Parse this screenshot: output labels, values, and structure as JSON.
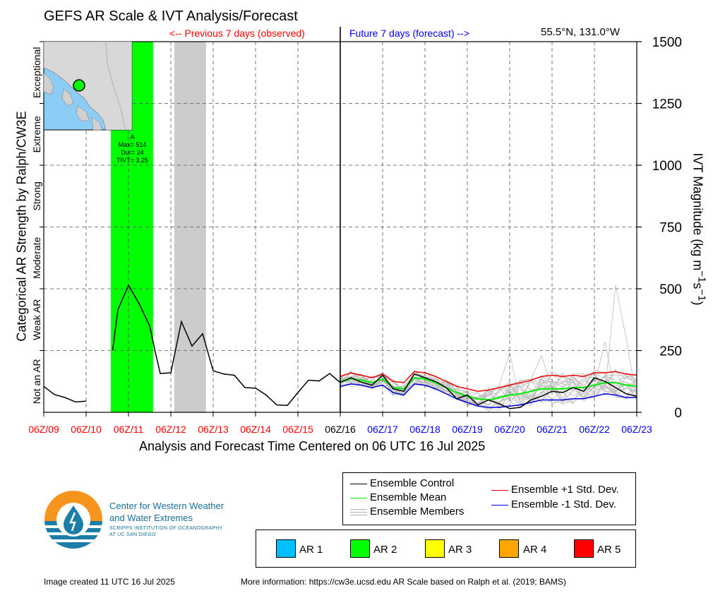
{
  "header": {
    "title": "GEFS AR Scale & IVT Analysis/Forecast",
    "previous_label": "<-- Previous 7 days (observed)",
    "future_label": "Future 7 days (forecast) -->",
    "location": "55.5°N, 131.0°W"
  },
  "footer": {
    "created": "Image created 11 UTC 16 Jul 2025",
    "more_info": "More information: https://cw3e.ucsd.edu AR Scale based on Ralph et al. (2019; BAMS)"
  },
  "logo": {
    "line1": "Center for Western Weather",
    "line2": "and Water Extremes",
    "sub1": "SCRIPPS INSTITUTION OF OCEANOGRAPHY",
    "sub2": "AT UC SAN DIEGO",
    "icon": "water-drop-logo-icon"
  },
  "inset": {
    "event_letter": "A",
    "max_text": "Max= 514",
    "dur_text": "Dur= 24",
    "tivt_text": "TIVT= 3.25"
  },
  "legend": {
    "items": [
      {
        "label": "Ensemble Control",
        "color": "#000000"
      },
      {
        "label": "Ensemble Mean",
        "color": "#00ee00"
      },
      {
        "label": "Ensemble Members",
        "color": "#b0b0b0"
      },
      {
        "label": "Ensemble +1 Std. Dev.",
        "color": "#ee0000"
      },
      {
        "label": "Ensemble -1 Std. Dev.",
        "color": "#0000dd"
      }
    ],
    "ar_scale": [
      {
        "label": "AR 1",
        "color": "#00bfff"
      },
      {
        "label": "AR 2",
        "color": "#00ff00"
      },
      {
        "label": "AR 3",
        "color": "#ffff00"
      },
      {
        "label": "AR 4",
        "color": "#ffa500"
      },
      {
        "label": "AR 5",
        "color": "#ff0000"
      }
    ]
  },
  "chart_data": {
    "type": "line",
    "title": "GEFS AR Scale & IVT Analysis/Forecast",
    "xlabel": "Analysis and Forecast Time Centered on 06 UTC 16 Jul 2025",
    "ylabel_left": "Categorical AR Strength by Ralph/CW3E",
    "ylabel_right": "IVT Magnitude (kg m^-1 s^-1)",
    "xlim": [
      0,
      14
    ],
    "ylim": [
      0,
      1500
    ],
    "x_ticks": [
      {
        "label": "06Z/09",
        "color": "#ff0000"
      },
      {
        "label": "06Z/10",
        "color": "#ff0000"
      },
      {
        "label": "06Z/11",
        "color": "#ff0000"
      },
      {
        "label": "06Z/12",
        "color": "#ff0000"
      },
      {
        "label": "06Z/13",
        "color": "#ff0000"
      },
      {
        "label": "06Z/14",
        "color": "#ff0000"
      },
      {
        "label": "06Z/15",
        "color": "#ff0000"
      },
      {
        "label": "06Z/16",
        "color": "#000000"
      },
      {
        "label": "06Z/17",
        "color": "#0000ff"
      },
      {
        "label": "06Z/18",
        "color": "#0000ff"
      },
      {
        "label": "06Z/19",
        "color": "#0000ff"
      },
      {
        "label": "06Z/20",
        "color": "#0000ff"
      },
      {
        "label": "06Z/21",
        "color": "#0000ff"
      },
      {
        "label": "06Z/22",
        "color": "#0000ff"
      },
      {
        "label": "06Z/23",
        "color": "#0000ff"
      }
    ],
    "y_ticks": [
      0,
      250,
      500,
      750,
      1000,
      1250,
      1500
    ],
    "categories_left": [
      {
        "label": "Not an AR",
        "from": 0,
        "to": 250
      },
      {
        "label": "Weak AR",
        "from": 250,
        "to": 500
      },
      {
        "label": "Moderate",
        "from": 500,
        "to": 750
      },
      {
        "label": "Strong",
        "from": 750,
        "to": 1000
      },
      {
        "label": "Extreme",
        "from": 1000,
        "to": 1250
      },
      {
        "label": "Exceptional",
        "from": 1250,
        "to": 1500
      }
    ],
    "shaded_periods": [
      {
        "x0": 1.58,
        "x1": 2.58,
        "color": "#00ff00",
        "kind": "AR 2"
      },
      {
        "x0": 3.08,
        "x1": 3.83,
        "color": "#cccccc",
        "kind": "below AR"
      }
    ],
    "observed": {
      "name": "Ensemble Control",
      "segments": [
        {
          "x": [
            0,
            0.25,
            0.5,
            0.75,
            1.0
          ],
          "y": [
            105,
            72,
            60,
            42,
            45
          ]
        },
        {
          "x": [
            1.625,
            1.75,
            2.0,
            2.25,
            2.5,
            2.625,
            2.75,
            3.0,
            3.25,
            3.5,
            3.75,
            4.0,
            4.25,
            4.5,
            4.75,
            5.0,
            5.25,
            5.5,
            5.75,
            6.0,
            6.25,
            6.5,
            6.75,
            7.0
          ],
          "y": [
            250,
            415,
            514,
            440,
            350,
            250,
            157,
            160,
            367,
            268,
            318,
            168,
            155,
            150,
            100,
            98,
            70,
            30,
            28,
            80,
            130,
            127,
            157,
            120
          ]
        }
      ]
    },
    "forecast_x": [
      7.0,
      7.25,
      7.5,
      7.75,
      8.0,
      8.25,
      8.5,
      8.75,
      9.0,
      9.25,
      9.5,
      9.75,
      10.0,
      10.25,
      10.5,
      10.75,
      11.0,
      11.25,
      11.5,
      11.75,
      12.0,
      12.25,
      12.5,
      12.75,
      13.0,
      13.25,
      13.5,
      13.75,
      14.0
    ],
    "series": [
      {
        "name": "Ensemble Control",
        "color": "#000000",
        "values": [
          120,
          140,
          122,
          110,
          150,
          95,
          85,
          155,
          140,
          125,
          100,
          55,
          70,
          30,
          50,
          35,
          15,
          20,
          50,
          65,
          85,
          80,
          100,
          85,
          140,
          125,
          100,
          75,
          65
        ]
      },
      {
        "name": "Ensemble Mean",
        "color": "#00ee00",
        "values": [
          125,
          135,
          130,
          120,
          135,
          100,
          95,
          140,
          135,
          120,
          100,
          80,
          65,
          55,
          50,
          60,
          70,
          75,
          85,
          95,
          95,
          95,
          100,
          100,
          110,
          120,
          120,
          110,
          105
        ]
      },
      {
        "name": "Ensemble +1 Std. Dev.",
        "color": "#ee0000",
        "values": [
          145,
          160,
          150,
          140,
          155,
          125,
          120,
          165,
          160,
          145,
          125,
          105,
          95,
          85,
          90,
          100,
          110,
          120,
          130,
          145,
          150,
          145,
          150,
          145,
          160,
          160,
          165,
          155,
          150
        ]
      },
      {
        "name": "Ensemble -1 Std. Dev.",
        "color": "#0000dd",
        "values": [
          105,
          115,
          110,
          100,
          110,
          80,
          70,
          115,
          110,
          95,
          75,
          55,
          40,
          25,
          20,
          20,
          25,
          30,
          40,
          50,
          50,
          50,
          55,
          55,
          65,
          75,
          70,
          60,
          60
        ]
      }
    ],
    "members_spread_note": "21 gray ensemble member lines between roughly 0 and 514",
    "inset_location": {
      "lat": 55.5,
      "lon": -131.0
    }
  }
}
